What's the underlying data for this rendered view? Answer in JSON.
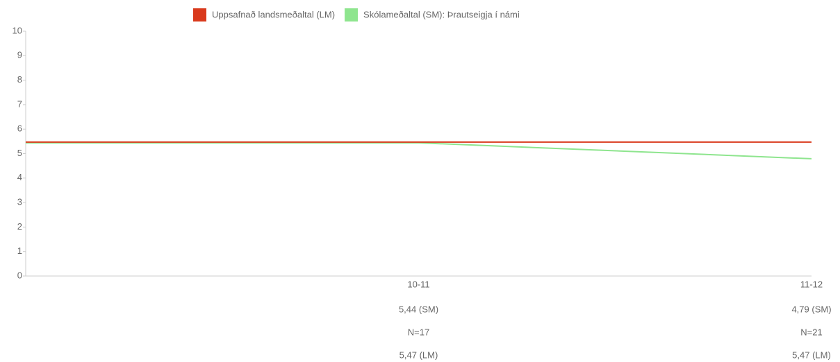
{
  "chart_data": {
    "type": "line",
    "categories": [
      null,
      "10-11",
      "11-12"
    ],
    "series": [
      {
        "name": "Uppsafnað landsmeðaltal (LM)",
        "color": "#d9391c",
        "values": [
          5.47,
          5.47,
          5.47
        ],
        "value_labels": [
          null,
          "5,47 (LM)",
          "5,47 (LM)"
        ]
      },
      {
        "name": "Skólameðaltal (SM): Þrautseigja í námi",
        "color": "#8ee58e",
        "values": [
          5.44,
          5.44,
          4.79
        ],
        "value_labels": [
          null,
          "5,44 (SM)",
          "4,79 (SM)"
        ]
      }
    ],
    "n_labels": [
      null,
      "N=17",
      "N=21"
    ],
    "ylim": [
      0,
      10
    ],
    "yticks": [
      0,
      1,
      2,
      3,
      4,
      5,
      6,
      7,
      8,
      9,
      10
    ],
    "grid": false,
    "legend": "top"
  }
}
